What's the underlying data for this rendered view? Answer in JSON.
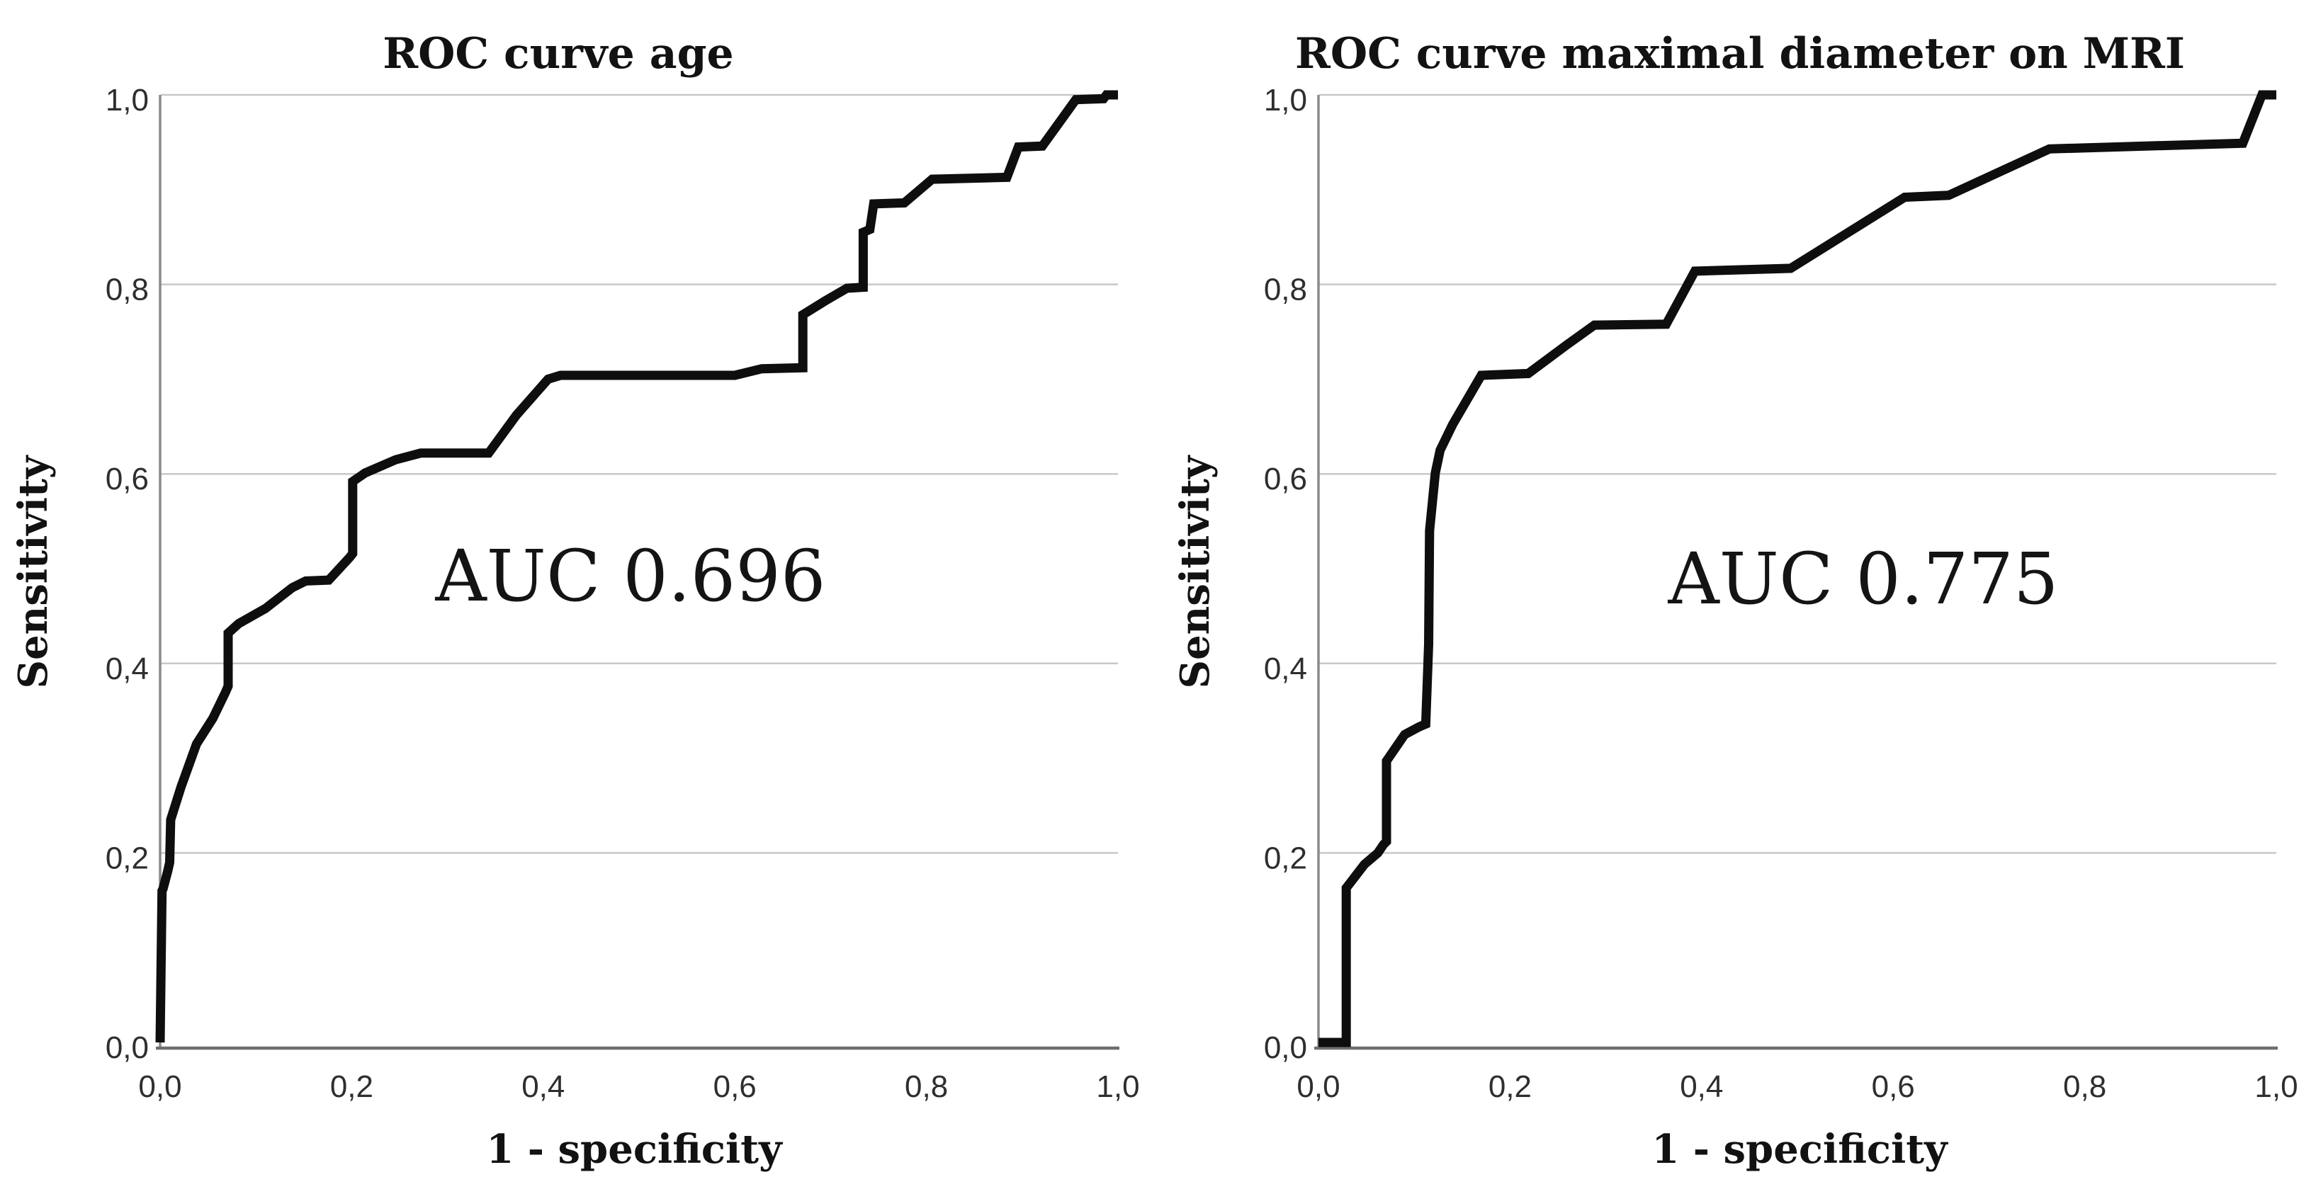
{
  "figure": {
    "background": "#ffffff",
    "curve_color": "#0e0e0e",
    "grid_color": "#c8c8c8",
    "axis_color": "#6f6f6f",
    "text_color": "#121212"
  },
  "chart_data": [
    {
      "type": "line",
      "subtype": "roc-step-curve",
      "title": "ROC curve age",
      "xlabel": "1 - specificity",
      "ylabel": "Sensitivity",
      "annotation": "AUC 0.696",
      "auc_value": 0.696,
      "xlim": [
        0,
        1
      ],
      "ylim": [
        0,
        1
      ],
      "grid": "horizontal",
      "legend": "none",
      "x_ticks": [
        0,
        0.2,
        0.4,
        0.6,
        0.8,
        1.0
      ],
      "y_ticks": [
        0,
        0.2,
        0.4,
        0.6,
        0.8,
        1.0
      ],
      "x_tick_labels": [
        "0,0",
        "0,2",
        "0,4",
        "0,6",
        "0,8",
        "1,0"
      ],
      "y_tick_labels": [
        "0,0",
        "0,2",
        "0,4",
        "0,6",
        "0,8",
        "1,0"
      ],
      "series": [
        {
          "name": "ROC curve age",
          "points": [
            [
              0.0,
              0.0
            ],
            [
              0.002,
              0.16
            ],
            [
              0.003,
              0.162
            ],
            [
              0.008,
              0.181
            ],
            [
              0.01,
              0.19
            ],
            [
              0.011,
              0.235
            ],
            [
              0.022,
              0.27
            ],
            [
              0.038,
              0.315
            ],
            [
              0.055,
              0.342
            ],
            [
              0.068,
              0.369
            ],
            [
              0.071,
              0.376
            ],
            [
              0.071,
              0.432
            ],
            [
              0.082,
              0.442
            ],
            [
              0.11,
              0.458
            ],
            [
              0.138,
              0.48
            ],
            [
              0.152,
              0.487
            ],
            [
              0.176,
              0.488
            ],
            [
              0.198,
              0.512
            ],
            [
              0.201,
              0.516
            ],
            [
              0.201,
              0.592
            ],
            [
              0.214,
              0.601
            ],
            [
              0.246,
              0.615
            ],
            [
              0.272,
              0.622
            ],
            [
              0.343,
              0.622
            ],
            [
              0.372,
              0.662
            ],
            [
              0.405,
              0.7
            ],
            [
              0.418,
              0.704
            ],
            [
              0.6,
              0.704
            ],
            [
              0.628,
              0.711
            ],
            [
              0.671,
              0.712
            ],
            [
              0.671,
              0.768
            ],
            [
              0.695,
              0.783
            ],
            [
              0.717,
              0.796
            ],
            [
              0.734,
              0.797
            ],
            [
              0.734,
              0.855
            ],
            [
              0.741,
              0.858
            ],
            [
              0.745,
              0.885
            ],
            [
              0.777,
              0.886
            ],
            [
              0.806,
              0.911
            ],
            [
              0.884,
              0.913
            ],
            [
              0.896,
              0.945
            ],
            [
              0.921,
              0.946
            ],
            [
              0.956,
              0.995
            ],
            [
              0.985,
              0.996
            ],
            [
              0.988,
              1.0
            ],
            [
              1.0,
              1.0
            ]
          ]
        }
      ]
    },
    {
      "type": "line",
      "subtype": "roc-step-curve",
      "title": "ROC curve maximal diameter on MRI",
      "xlabel": "1 - specificity",
      "ylabel": "Sensitivity",
      "annotation": "AUC 0.775",
      "auc_value": 0.775,
      "xlim": [
        0,
        1
      ],
      "ylim": [
        0,
        1
      ],
      "grid": "horizontal",
      "legend": "none",
      "x_ticks": [
        0,
        0.2,
        0.4,
        0.6,
        0.8,
        1.0
      ],
      "y_ticks": [
        0,
        0.2,
        0.4,
        0.6,
        0.8,
        1.0
      ],
      "x_tick_labels": [
        "0,0",
        "0,2",
        "0,4",
        "0,6",
        "0,8",
        "1,0"
      ],
      "y_tick_labels": [
        "0,0",
        "0,2",
        "0,4",
        "0,6",
        "0,8",
        "1,0"
      ],
      "series": [
        {
          "name": "ROC curve maximal diameter on MRI",
          "points": [
            [
              0.0,
              0.0
            ],
            [
              0.029,
              0.0
            ],
            [
              0.029,
              0.163
            ],
            [
              0.048,
              0.188
            ],
            [
              0.062,
              0.2
            ],
            [
              0.068,
              0.209
            ],
            [
              0.071,
              0.212
            ],
            [
              0.071,
              0.297
            ],
            [
              0.09,
              0.325
            ],
            [
              0.105,
              0.333
            ],
            [
              0.112,
              0.336
            ],
            [
              0.115,
              0.42
            ],
            [
              0.116,
              0.54
            ],
            [
              0.122,
              0.601
            ],
            [
              0.127,
              0.625
            ],
            [
              0.14,
              0.652
            ],
            [
              0.17,
              0.704
            ],
            [
              0.219,
              0.706
            ],
            [
              0.259,
              0.736
            ],
            [
              0.288,
              0.757
            ],
            [
              0.363,
              0.758
            ],
            [
              0.393,
              0.814
            ],
            [
              0.493,
              0.817
            ],
            [
              0.612,
              0.892
            ],
            [
              0.658,
              0.894
            ],
            [
              0.763,
              0.943
            ],
            [
              0.965,
              0.949
            ],
            [
              0.985,
              1.0
            ],
            [
              1.0,
              1.0
            ]
          ]
        }
      ]
    }
  ]
}
